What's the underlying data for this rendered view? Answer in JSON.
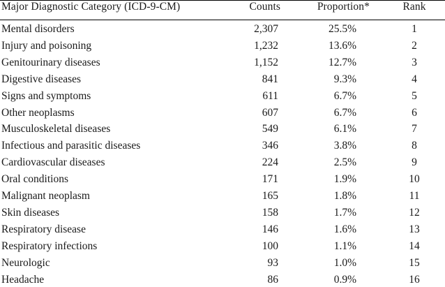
{
  "table": {
    "headers": {
      "category": "Major Diagnostic Category (ICD-9-CM)",
      "counts": "Counts",
      "proportion": "Proportion*",
      "rank": "Rank"
    },
    "rows": [
      {
        "category": "Mental disorders",
        "counts": "2,307",
        "proportion": "25.5%",
        "rank": "1"
      },
      {
        "category": "Injury and poisoning",
        "counts": "1,232",
        "proportion": "13.6%",
        "rank": "2"
      },
      {
        "category": "Genitourinary diseases",
        "counts": "1,152",
        "proportion": "12.7%",
        "rank": "3"
      },
      {
        "category": "Digestive diseases",
        "counts": "841",
        "proportion": "9.3%",
        "rank": "4"
      },
      {
        "category": "Signs and symptoms",
        "counts": "611",
        "proportion": "6.7%",
        "rank": "5"
      },
      {
        "category": "Other neoplasms",
        "counts": "607",
        "proportion": "6.7%",
        "rank": "6"
      },
      {
        "category": "Musculoskeletal diseases",
        "counts": "549",
        "proportion": "6.1%",
        "rank": "7"
      },
      {
        "category": "Infectious and parasitic diseases",
        "counts": "346",
        "proportion": "3.8%",
        "rank": "8"
      },
      {
        "category": "Cardiovascular diseases",
        "counts": "224",
        "proportion": "2.5%",
        "rank": "9"
      },
      {
        "category": "Oral conditions",
        "counts": "171",
        "proportion": "1.9%",
        "rank": "10"
      },
      {
        "category": "Malignant neoplasm",
        "counts": "165",
        "proportion": "1.8%",
        "rank": "11"
      },
      {
        "category": "Skin diseases",
        "counts": "158",
        "proportion": "1.7%",
        "rank": "12"
      },
      {
        "category": "Respiratory disease",
        "counts": "146",
        "proportion": "1.6%",
        "rank": "13"
      },
      {
        "category": "Respiratory infections",
        "counts": "100",
        "proportion": "1.1%",
        "rank": "14"
      },
      {
        "category": "Neurologic",
        "counts": "93",
        "proportion": "1.0%",
        "rank": "15"
      },
      {
        "category": "Headache",
        "counts": "86",
        "proportion": "0.9%",
        "rank": "16"
      }
    ]
  }
}
